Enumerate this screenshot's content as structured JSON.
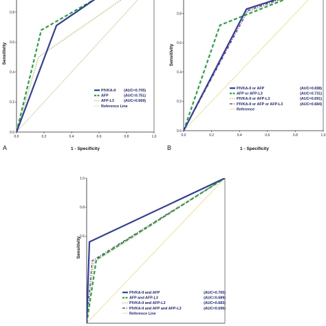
{
  "chart_data": [
    {
      "type": "line",
      "panel_label": "A",
      "xlabel": "1 - Specificity",
      "ylabel": "Sensitivity",
      "xlim": [
        0,
        1.0
      ],
      "ylim": [
        0,
        1.0
      ],
      "x_ticks": [
        "0.0",
        "0.2",
        "0.4",
        "0.6",
        "0.8",
        "1.0"
      ],
      "y_ticks": [
        "0.0",
        "0.2",
        "0.4",
        "0.6",
        "0.8"
      ],
      "series": [
        {
          "name": "PIVKA-II",
          "auc_label": "(AUC=0.705)",
          "color": "#2e3f9e",
          "style": "solid",
          "points": [
            [
              0,
              0
            ],
            [
              0.29,
              0.71
            ],
            [
              0.72,
              0.98
            ]
          ]
        },
        {
          "name": "AFP",
          "auc_label": "(AUC=0.751)",
          "color": "#22a53a",
          "style": "dashed",
          "points": [
            [
              0,
              0
            ],
            [
              0.18,
              0.68
            ],
            [
              0.71,
              0.96
            ]
          ]
        },
        {
          "name": "AFP-L3",
          "auc_label": "(AUC=0.669)",
          "color": "#bcc06a",
          "style": "dotted",
          "points": [
            [
              0,
              0
            ],
            [
              0.16,
              0.5
            ],
            [
              0.79,
              0.9
            ]
          ]
        },
        {
          "name": "Reference Line",
          "auc_label": "",
          "color": "#d2d49a",
          "style": "thin",
          "points": [
            [
              0,
              0
            ],
            [
              1,
              1
            ]
          ]
        }
      ]
    },
    {
      "type": "line",
      "panel_label": "B",
      "xlabel": "1 - Specificity",
      "ylabel": "Sensitivity",
      "xlim": [
        0,
        1.0
      ],
      "ylim": [
        0,
        1.0
      ],
      "x_ticks": [
        "0.0",
        "0.2",
        "0.4",
        "0.6",
        "0.8",
        "1.0"
      ],
      "y_ticks": [
        "0.0",
        "0.2",
        "0.4",
        "0.6",
        "0.8"
      ],
      "series": [
        {
          "name": "PIVKA-II or AFP",
          "auc_label": "(AUC=0.698)",
          "color": "#2e3f9e",
          "style": "solid",
          "points": [
            [
              0,
              0
            ],
            [
              0.45,
              0.83
            ],
            [
              1,
              1
            ]
          ]
        },
        {
          "name": "AFP or AFP-L3",
          "auc_label": "(AUC=0.731)",
          "color": "#22a53a",
          "style": "dashed",
          "points": [
            [
              0,
              0
            ],
            [
              0.26,
              0.72
            ],
            [
              1,
              1
            ]
          ]
        },
        {
          "name": "PIVKA-II or AFP-L3",
          "auc_label": "(AUC=0.691)",
          "color": "#bcc06a",
          "style": "dotted",
          "points": [
            [
              0,
              0
            ],
            [
              0.43,
              0.8
            ],
            [
              1,
              1
            ]
          ]
        },
        {
          "name": "PIVKA-II or AFP or AFP-L3",
          "auc_label": "(AUC=0.684)",
          "color": "#6b3fa0",
          "style": "dashdot",
          "points": [
            [
              0,
              0
            ],
            [
              0.46,
              0.82
            ],
            [
              1,
              1
            ]
          ]
        },
        {
          "name": "Reference",
          "auc_label": "",
          "color": "#e6e07a",
          "style": "thin",
          "points": [
            [
              0,
              0
            ],
            [
              1,
              1
            ]
          ]
        }
      ]
    },
    {
      "type": "line",
      "panel_label": "",
      "xlabel": "",
      "ylabel": "Sensitivity",
      "xlim": [
        0,
        1.0
      ],
      "ylim": [
        0,
        1.0
      ],
      "x_ticks": [],
      "y_ticks": [
        "0.6",
        "0.8",
        "1.0"
      ],
      "series": [
        {
          "name": "PIVKA-II and AFP",
          "auc_label": "(AUC=0.765)",
          "color": "#2e3f9e",
          "style": "solid",
          "points": [
            [
              0,
              0
            ],
            [
              0.02,
              0.56
            ],
            [
              1,
              1
            ]
          ]
        },
        {
          "name": "AFP and AFP-L3",
          "auc_label": "(AUC=0.689)",
          "color": "#22a53a",
          "style": "dashed",
          "points": [
            [
              0,
              0
            ],
            [
              0.07,
              0.44
            ],
            [
              1,
              1
            ]
          ]
        },
        {
          "name": "PIVKA-II and AFP-L3",
          "auc_label": "(AUC=0.683)",
          "color": "#bcc06a",
          "style": "dotted",
          "points": [
            [
              0,
              0
            ],
            [
              0.05,
              0.42
            ],
            [
              1,
              1
            ]
          ]
        },
        {
          "name": "PIVKA-II and AFP and AFP-L3",
          "auc_label": "(AUC=0.696)",
          "color": "#6b3fa0",
          "style": "dashdot",
          "points": [
            [
              0,
              0
            ],
            [
              0.04,
              0.43
            ],
            [
              1,
              1
            ]
          ]
        },
        {
          "name": "Reference Line",
          "auc_label": "",
          "color": "#e6e07a",
          "style": "thin",
          "points": [
            [
              0,
              0
            ],
            [
              1,
              1
            ]
          ]
        }
      ]
    }
  ]
}
